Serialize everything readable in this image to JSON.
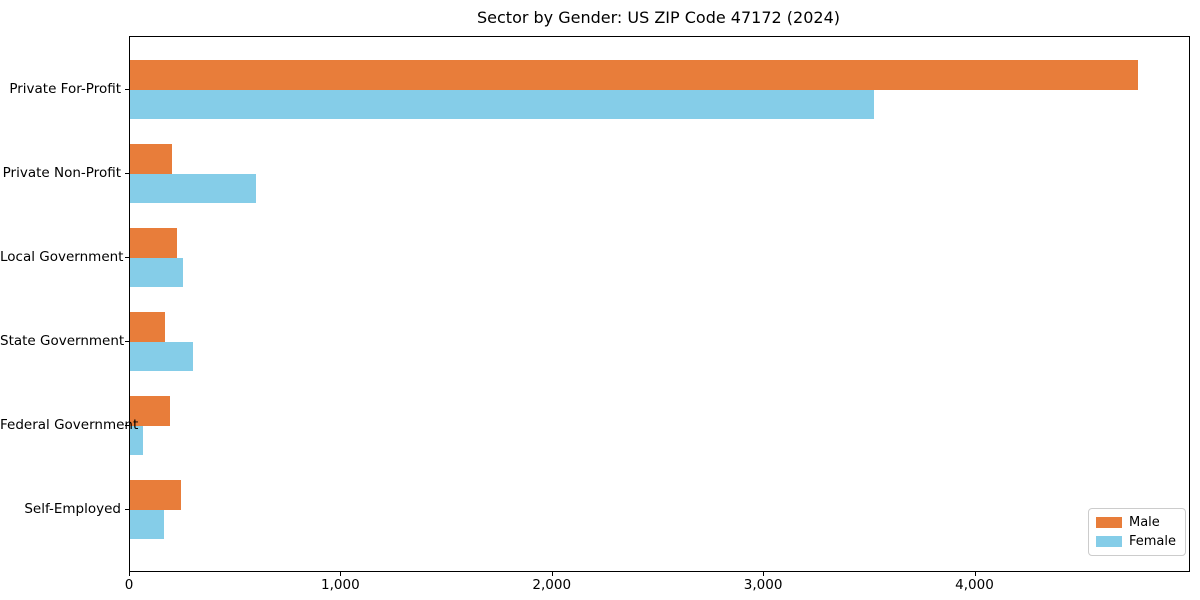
{
  "title": "Sector by Gender: US ZIP Code 47172 (2024)",
  "colors": {
    "male": "#E87D3A",
    "female": "#85CDE8",
    "axis": "#000000",
    "legend_border": "#cccccc",
    "background": "#ffffff"
  },
  "chart_data": {
    "type": "bar",
    "orientation": "horizontal",
    "title": "Sector by Gender: US ZIP Code 47172 (2024)",
    "xlabel": "",
    "ylabel": "",
    "categories": [
      "Private For-Profit",
      "Private Non-Profit",
      "Local Government",
      "State Government",
      "Federal Government",
      "Self-Employed"
    ],
    "series": [
      {
        "name": "Male",
        "color": "#E87D3A",
        "values": [
          4770,
          200,
          220,
          165,
          190,
          240
        ]
      },
      {
        "name": "Female",
        "color": "#85CDE8",
        "values": [
          3520,
          595,
          250,
          300,
          60,
          160
        ]
      }
    ],
    "xlim": [
      0,
      5010
    ],
    "x_ticks": [
      0,
      1000,
      2000,
      3000,
      4000
    ],
    "x_tick_labels": [
      "0",
      "1,000",
      "2,000",
      "3,000",
      "4,000"
    ],
    "grid": false,
    "legend_position": "lower right"
  },
  "legend": {
    "items": [
      {
        "label": "Male"
      },
      {
        "label": "Female"
      }
    ]
  }
}
